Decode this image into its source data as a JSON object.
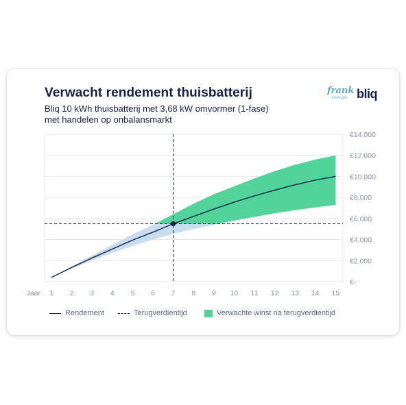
{
  "chart_data": {
    "type": "line",
    "title": "Verwacht rendement thuisbatterij",
    "subtitle": [
      "Bliq 10 kWh thuisbatterij met 3,68 kW omvormer (1-fase)",
      "met handelen op onbalansmarkt"
    ],
    "xlabel": "Jaar",
    "x": [
      1,
      2,
      3,
      4,
      5,
      6,
      7,
      8,
      9,
      10,
      11,
      12,
      13,
      14,
      15
    ],
    "x_tick_labels": [
      "1",
      "2",
      "3",
      "4",
      "5",
      "6",
      "7",
      "8",
      "9",
      "10",
      "11",
      "12",
      "13",
      "14",
      "15"
    ],
    "ylim": [
      0,
      14000
    ],
    "y_ticks": [
      0,
      2000,
      4000,
      6000,
      8000,
      10000,
      12000,
      14000
    ],
    "y_tick_labels": [
      "€-",
      "€2.000",
      "€4.000",
      "€6.000",
      "€8.000",
      "€10.000",
      "€12.000",
      "€14.000"
    ],
    "y_axis_side": "right",
    "series": [
      {
        "name": "Rendement",
        "style": "solid line",
        "values": [
          400,
          1350,
          2250,
          3100,
          3950,
          4700,
          5500,
          6200,
          6900,
          7550,
          8150,
          8700,
          9200,
          9650,
          10000
        ]
      }
    ],
    "band": {
      "lower": [
        400,
        1250,
        2000,
        2750,
        3400,
        4000,
        4550,
        5000,
        5400,
        5800,
        6150,
        6500,
        6800,
        7050,
        7300
      ],
      "upper": [
        400,
        1450,
        2500,
        3500,
        4500,
        5400,
        6400,
        7400,
        8300,
        9050,
        9800,
        10500,
        11100,
        11600,
        12000
      ],
      "color_before": "#c9deec",
      "color_after": "#52d39a"
    },
    "payback": {
      "x": 7,
      "y": 5500,
      "name": "Terugverdientijd",
      "style": "dashed"
    },
    "legend": {
      "placement": "bottom-left",
      "entries": [
        {
          "label": "Rendement",
          "swatch": "line"
        },
        {
          "label": "Terugverdientijd",
          "swatch": "dash"
        },
        {
          "label": "Verwachte winst na terugverdientijd",
          "swatch": "area"
        }
      ]
    },
    "grid": "horizontal",
    "colors": {
      "line": "#14204a",
      "grid": "#e5e8ee",
      "tick_text": "#8a90a0",
      "title": "#14204a"
    }
  },
  "logos": {
    "frank_word": "frank",
    "frank_sub": "energie",
    "bliq": "bliq"
  }
}
